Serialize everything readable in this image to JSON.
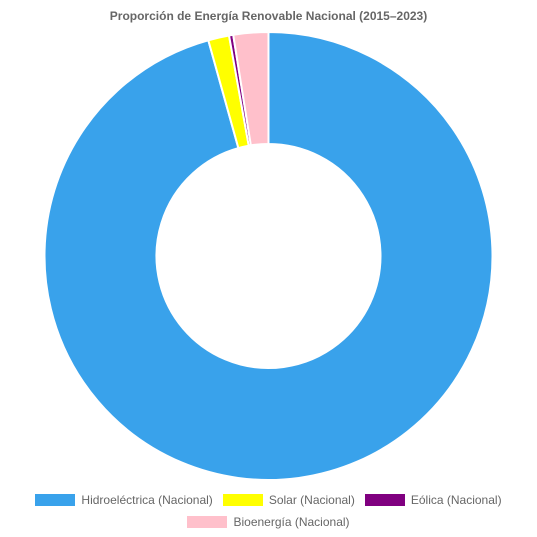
{
  "chart_data": {
    "type": "pie",
    "donut": true,
    "title": "Proporción de Energía Renovable Nacional (2015–2023)",
    "legend_position": "bottom",
    "categories": [
      "Hidroeléctrica (Nacional)",
      "Solar (Nacional)",
      "Eólica (Nacional)",
      "Bioenergía (Nacional)"
    ],
    "values": [
      95.0,
      1.5,
      0.3,
      2.5
    ],
    "colors": [
      "#39a2eb",
      "#ffff00",
      "#800080",
      "#ffc0cb"
    ]
  }
}
